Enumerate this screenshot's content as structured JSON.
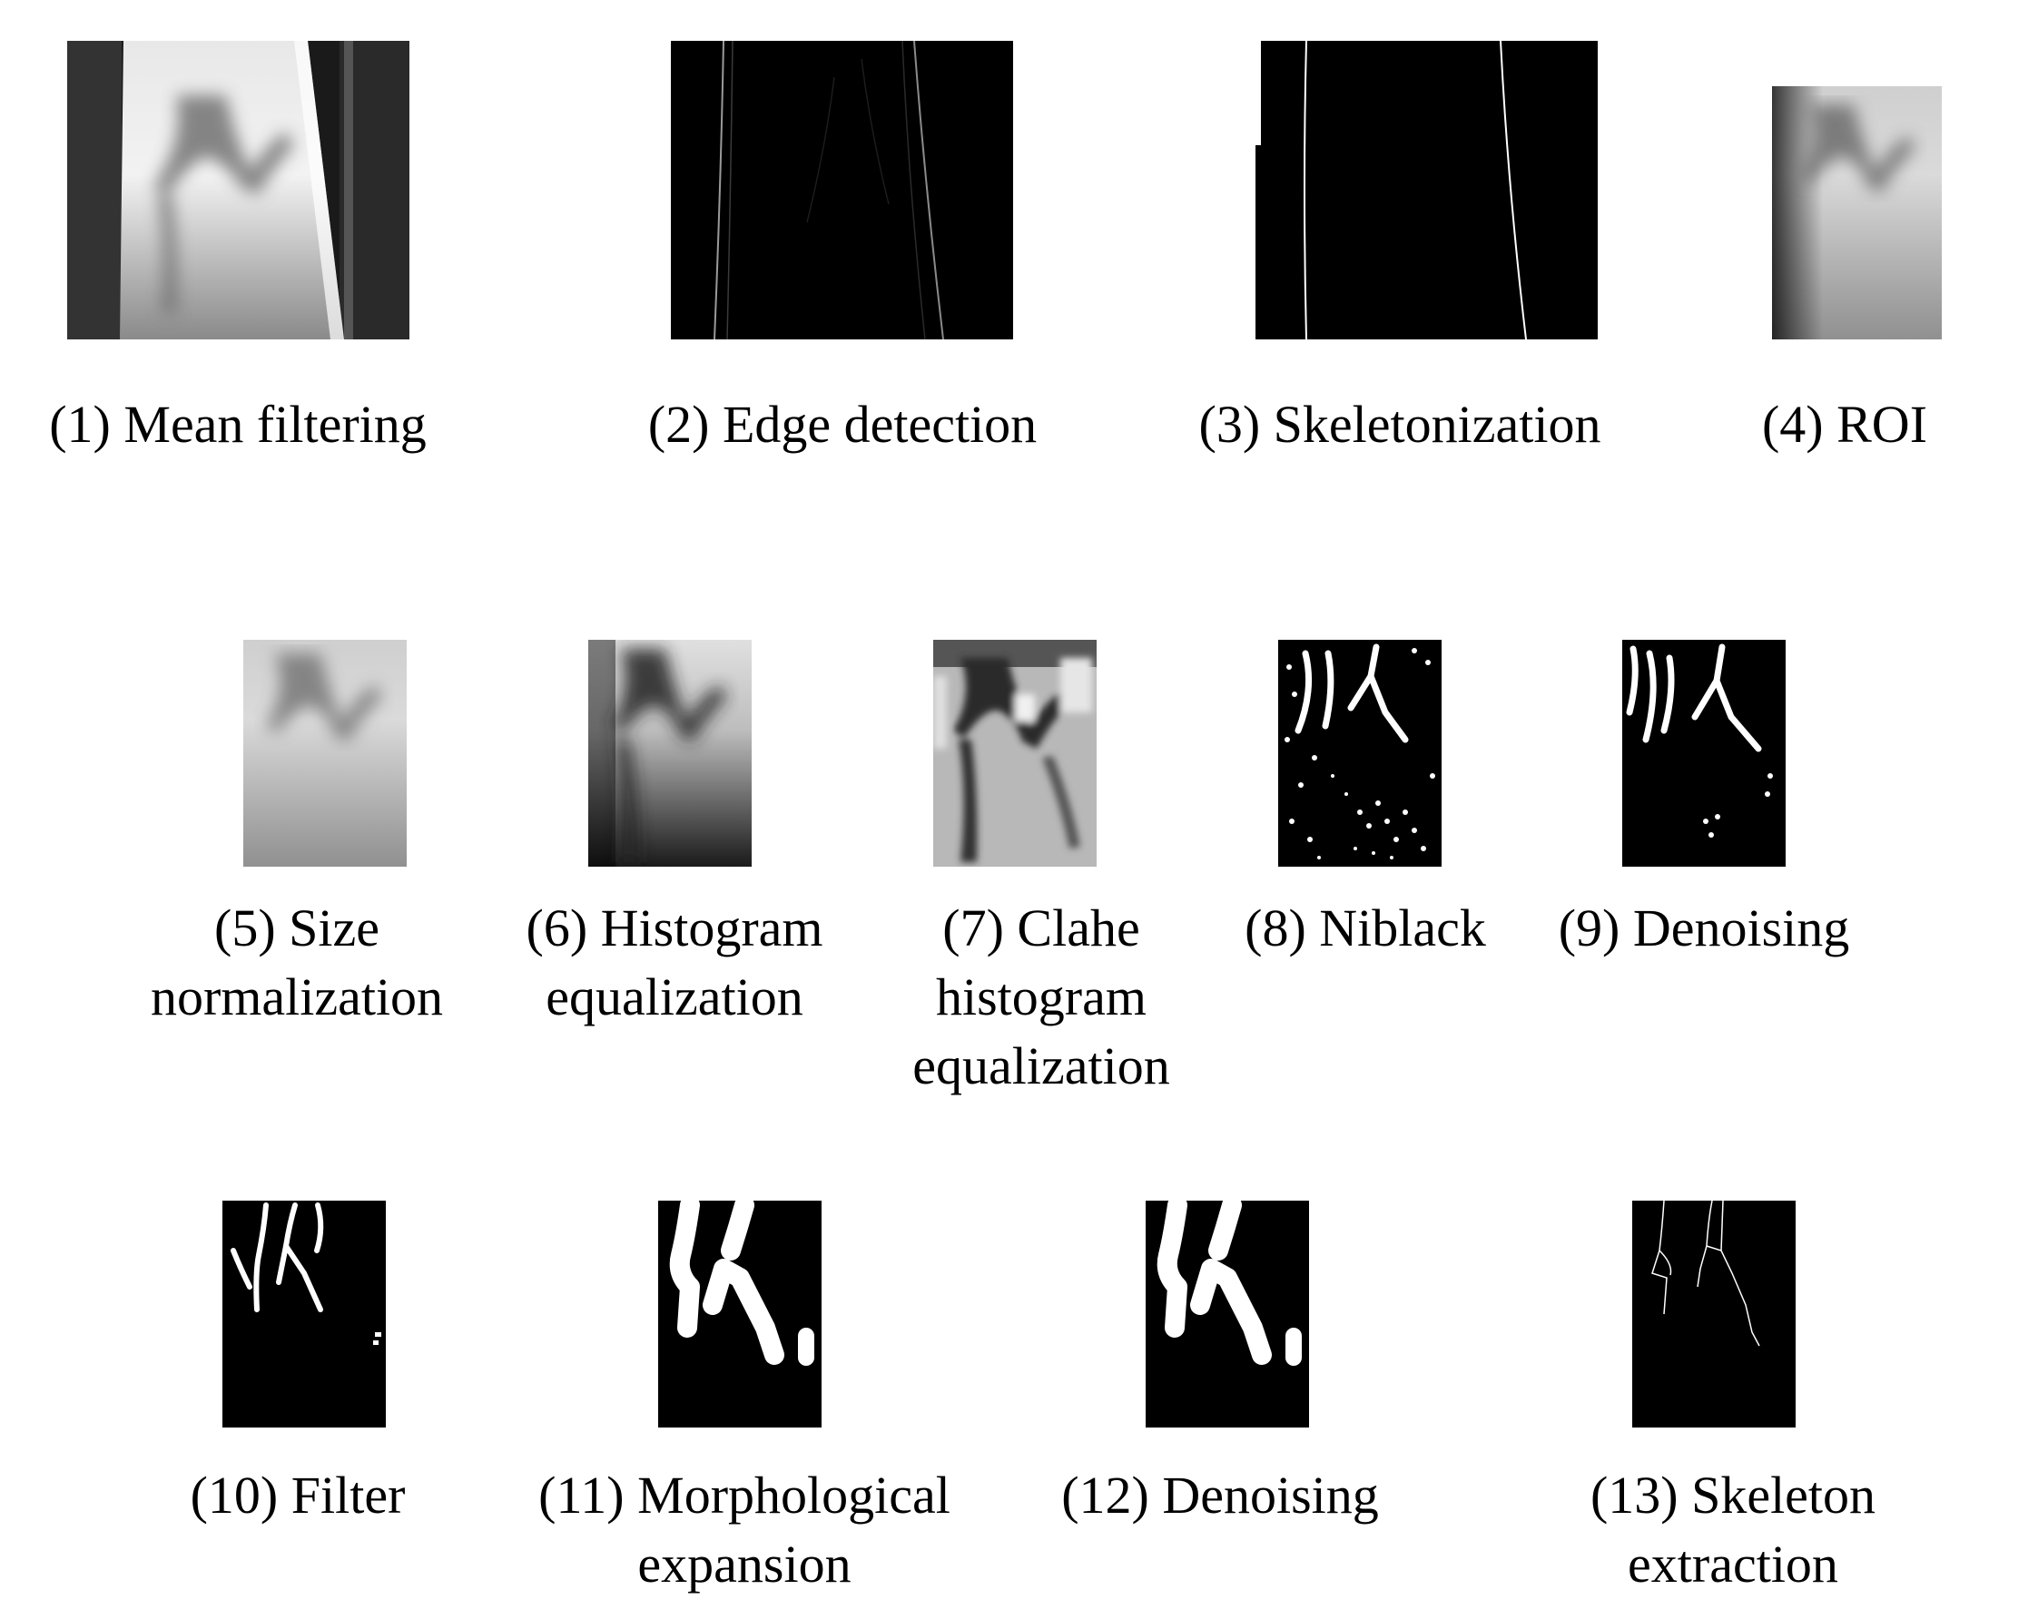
{
  "figure": {
    "row1": [
      {
        "id": 1,
        "caption": "(1) Mean filtering"
      },
      {
        "id": 2,
        "caption": "(2) Edge detection"
      },
      {
        "id": 3,
        "caption": "(3) Skeletonization"
      },
      {
        "id": 4,
        "caption": "(4) ROI"
      }
    ],
    "row2": [
      {
        "id": 5,
        "caption": "(5) Size\nnormalization"
      },
      {
        "id": 6,
        "caption": "(6) Histogram\nequalization"
      },
      {
        "id": 7,
        "caption": "(7) Clahe\nhistogram\nequalization"
      },
      {
        "id": 8,
        "caption": "(8) Niblack"
      },
      {
        "id": 9,
        "caption": "(9) Denoising"
      }
    ],
    "row3": [
      {
        "id": 10,
        "caption": "(10) Filter"
      },
      {
        "id": 11,
        "caption": "(11) Morphological\nexpansion"
      },
      {
        "id": 12,
        "caption": "(12) Denoising"
      },
      {
        "id": 13,
        "caption": "(13) Skeleton extraction"
      }
    ]
  }
}
